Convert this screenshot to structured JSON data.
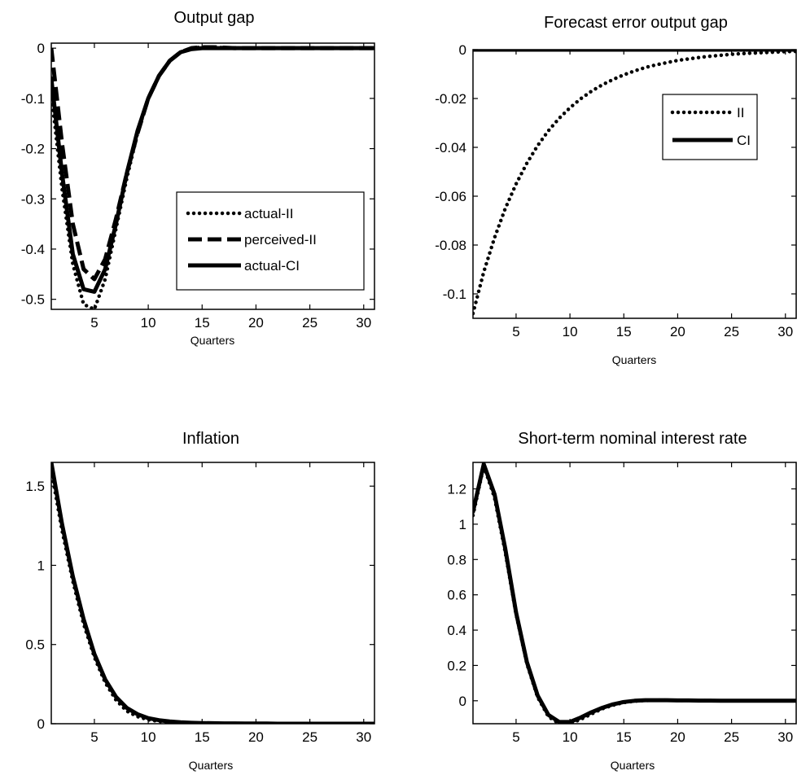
{
  "chart_data": [
    {
      "type": "line",
      "title": "Output gap",
      "xlabel": "Quarters",
      "ylabel": "",
      "xlim": [
        1,
        31
      ],
      "ylim": [
        -0.52,
        0.01
      ],
      "xticks": [
        5,
        10,
        15,
        20,
        25,
        30
      ],
      "yticks": [
        0,
        -0.1,
        -0.2,
        -0.3,
        -0.4,
        -0.5
      ],
      "ytick_labels": [
        "0",
        "-0.1",
        "-0.2",
        "-0.3",
        "-0.4",
        "-0.5"
      ],
      "grid": false,
      "legend": {
        "placement": "right",
        "entries": [
          "actual-II",
          "perceived-II",
          "actual-CI"
        ]
      },
      "x": [
        1,
        2,
        3,
        4,
        5,
        6,
        7,
        8,
        9,
        10,
        11,
        12,
        13,
        14,
        15,
        16,
        17,
        18,
        19,
        20,
        21,
        22,
        23,
        24,
        25,
        26,
        27,
        28,
        29,
        30,
        31
      ],
      "series": [
        {
          "name": "actual-II",
          "style": "dotted",
          "values": [
            -0.09,
            -0.28,
            -0.43,
            -0.51,
            -0.52,
            -0.46,
            -0.36,
            -0.26,
            -0.17,
            -0.1,
            -0.055,
            -0.025,
            -0.008,
            0.0,
            0.002,
            0.002,
            0.001,
            0.0,
            0.0,
            0.0,
            0.0,
            0.0,
            0.0,
            0.0,
            0.0,
            0.0,
            0.0,
            0.0,
            0.0,
            0.0,
            0.0
          ]
        },
        {
          "name": "perceived-II",
          "style": "dashed",
          "values": [
            0.0,
            -0.19,
            -0.35,
            -0.44,
            -0.46,
            -0.42,
            -0.34,
            -0.25,
            -0.17,
            -0.1,
            -0.055,
            -0.025,
            -0.008,
            0.0,
            0.002,
            0.002,
            0.001,
            0.0,
            0.0,
            0.0,
            0.0,
            0.0,
            0.0,
            0.0,
            0.0,
            0.0,
            0.0,
            0.0,
            0.0,
            0.0,
            0.0
          ]
        },
        {
          "name": "actual-CI",
          "style": "solid",
          "values": [
            -0.06,
            -0.25,
            -0.41,
            -0.48,
            -0.485,
            -0.44,
            -0.35,
            -0.25,
            -0.165,
            -0.1,
            -0.055,
            -0.025,
            -0.008,
            -0.002,
            0.0,
            0.0,
            0.0,
            0.0,
            0.0,
            0.0,
            0.0,
            0.0,
            0.0,
            0.0,
            0.0,
            0.0,
            0.0,
            0.0,
            0.0,
            0.0,
            0.0
          ]
        }
      ]
    },
    {
      "type": "line",
      "title": "Forecast error output gap",
      "xlabel": "Quarters",
      "ylabel": "",
      "xlim": [
        1,
        31
      ],
      "ylim": [
        -0.11,
        0.0
      ],
      "xticks": [
        5,
        10,
        15,
        20,
        25,
        30
      ],
      "yticks": [
        0,
        -0.02,
        -0.04,
        -0.06,
        -0.08,
        -0.1
      ],
      "ytick_labels": [
        "0",
        "-0.02",
        "-0.04",
        "-0.06",
        "-0.08",
        "-0.1"
      ],
      "grid": false,
      "legend": {
        "placement": "top-right",
        "entries": [
          "II",
          "CI"
        ]
      },
      "x": [
        1,
        2,
        3,
        4,
        5,
        6,
        7,
        8,
        9,
        10,
        11,
        12,
        13,
        14,
        15,
        16,
        17,
        18,
        19,
        20,
        21,
        22,
        23,
        24,
        25,
        26,
        27,
        28,
        29,
        30,
        31
      ],
      "series": [
        {
          "name": "II",
          "style": "dotted",
          "values": [
            -0.108,
            -0.091,
            -0.077,
            -0.065,
            -0.055,
            -0.0465,
            -0.0393,
            -0.0332,
            -0.0281,
            -0.0238,
            -0.0201,
            -0.017,
            -0.0144,
            -0.0122,
            -0.0103,
            -0.0087,
            -0.0073,
            -0.0062,
            -0.0053,
            -0.0044,
            -0.0038,
            -0.0032,
            -0.0027,
            -0.0023,
            -0.0019,
            -0.0016,
            -0.0014,
            -0.0012,
            -0.001,
            -0.0008,
            -0.0007
          ]
        },
        {
          "name": "CI",
          "style": "solid",
          "values": [
            0,
            0,
            0,
            0,
            0,
            0,
            0,
            0,
            0,
            0,
            0,
            0,
            0,
            0,
            0,
            0,
            0,
            0,
            0,
            0,
            0,
            0,
            0,
            0,
            0,
            0,
            0,
            0,
            0,
            0,
            0
          ]
        }
      ]
    },
    {
      "type": "line",
      "title": "Inflation",
      "xlabel": "Quarters",
      "ylabel": "",
      "xlim": [
        1,
        31
      ],
      "ylim": [
        0,
        1.65
      ],
      "xticks": [
        5,
        10,
        15,
        20,
        25,
        30
      ],
      "yticks": [
        0,
        0.5,
        1,
        1.5
      ],
      "ytick_labels": [
        "0",
        "0.5",
        "1",
        "1.5"
      ],
      "grid": false,
      "x": [
        1,
        2,
        3,
        4,
        5,
        6,
        7,
        8,
        9,
        10,
        11,
        12,
        13,
        14,
        15,
        16,
        17,
        18,
        19,
        20,
        21,
        22,
        23,
        24,
        25,
        26,
        27,
        28,
        29,
        30,
        31
      ],
      "series": [
        {
          "style": "dotted",
          "values": [
            1.6,
            1.22,
            0.9,
            0.63,
            0.42,
            0.26,
            0.15,
            0.08,
            0.045,
            0.025,
            0.015,
            0.009,
            0.006,
            0.004,
            0.003,
            0.002,
            0.002,
            0.001,
            0.001,
            0.001,
            0.0,
            0.0,
            0.0,
            0.0,
            0.0,
            0.0,
            0.0,
            0.0,
            0.0,
            0.0,
            0.0
          ]
        },
        {
          "style": "solid",
          "values": [
            1.65,
            1.26,
            0.93,
            0.66,
            0.44,
            0.28,
            0.17,
            0.1,
            0.06,
            0.035,
            0.022,
            0.014,
            0.009,
            0.006,
            0.004,
            0.003,
            0.002,
            0.002,
            0.001,
            0.001,
            0.001,
            0.0,
            0.0,
            0.0,
            0.0,
            0.0,
            0.0,
            0.0,
            0.0,
            0.0,
            0.0
          ]
        }
      ]
    },
    {
      "type": "line",
      "title": "Short-term nominal interest rate",
      "xlabel": "Quarters",
      "ylabel": "",
      "xlim": [
        1,
        31
      ],
      "ylim": [
        -0.13,
        1.35
      ],
      "xticks": [
        5,
        10,
        15,
        20,
        25,
        30
      ],
      "yticks": [
        0,
        0.2,
        0.4,
        0.6,
        0.8,
        1,
        1.2
      ],
      "ytick_labels": [
        "0",
        "0.2",
        "0.4",
        "0.6",
        "0.8",
        "1",
        "1.2"
      ],
      "grid": false,
      "x": [
        1,
        2,
        3,
        4,
        5,
        6,
        7,
        8,
        9,
        10,
        11,
        12,
        13,
        14,
        15,
        16,
        17,
        18,
        19,
        20,
        21,
        22,
        23,
        24,
        25,
        26,
        27,
        28,
        29,
        30,
        31
      ],
      "series": [
        {
          "style": "dotted",
          "values": [
            1.05,
            1.33,
            1.15,
            0.84,
            0.49,
            0.21,
            0.02,
            -0.09,
            -0.13,
            -0.13,
            -0.105,
            -0.075,
            -0.045,
            -0.025,
            -0.01,
            -0.002,
            0.002,
            0.003,
            0.003,
            0.002,
            0.002,
            0.001,
            0.001,
            0.0,
            0.0,
            0.0,
            0.0,
            0.0,
            0.0,
            0.0,
            0.0
          ]
        },
        {
          "style": "solid",
          "values": [
            1.07,
            1.34,
            1.17,
            0.86,
            0.5,
            0.22,
            0.03,
            -0.08,
            -0.12,
            -0.12,
            -0.095,
            -0.065,
            -0.04,
            -0.02,
            -0.007,
            0.0,
            0.003,
            0.003,
            0.003,
            0.002,
            0.002,
            0.001,
            0.001,
            0.0,
            0.0,
            0.0,
            0.0,
            0.0,
            0.0,
            0.0,
            0.0
          ]
        }
      ]
    }
  ]
}
